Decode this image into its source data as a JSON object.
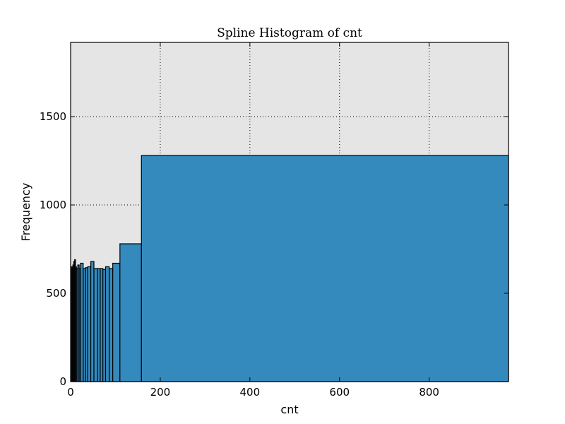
{
  "chart_data": {
    "type": "bar",
    "title": "Spline Histogram of cnt",
    "xlabel": "cnt",
    "ylabel": "Frequency",
    "xlim": [
      0,
      977
    ],
    "ylim": [
      0,
      1920
    ],
    "xticks": [
      0,
      200,
      400,
      600,
      800
    ],
    "yticks": [
      0,
      500,
      1000,
      1500
    ],
    "grid": true,
    "colors": {
      "bar": "#348abd",
      "edge": "#000000",
      "background": "#e5e5e5"
    },
    "bins": [
      {
        "x0": 1,
        "x1": 3,
        "value": 650
      },
      {
        "x0": 3,
        "x1": 5,
        "value": 640
      },
      {
        "x0": 5,
        "x1": 7,
        "value": 660
      },
      {
        "x0": 7,
        "x1": 9,
        "value": 680
      },
      {
        "x0": 9,
        "x1": 11,
        "value": 690
      },
      {
        "x0": 11,
        "x1": 13,
        "value": 650
      },
      {
        "x0": 13,
        "x1": 16,
        "value": 640
      },
      {
        "x0": 16,
        "x1": 19,
        "value": 660
      },
      {
        "x0": 19,
        "x1": 22,
        "value": 640
      },
      {
        "x0": 22,
        "x1": 28,
        "value": 670
      },
      {
        "x0": 28,
        "x1": 33,
        "value": 640
      },
      {
        "x0": 33,
        "x1": 38,
        "value": 645
      },
      {
        "x0": 38,
        "x1": 45,
        "value": 650
      },
      {
        "x0": 45,
        "x1": 52,
        "value": 680
      },
      {
        "x0": 52,
        "x1": 60,
        "value": 640
      },
      {
        "x0": 60,
        "x1": 66,
        "value": 640
      },
      {
        "x0": 66,
        "x1": 72,
        "value": 640
      },
      {
        "x0": 72,
        "x1": 78,
        "value": 635
      },
      {
        "x0": 78,
        "x1": 86,
        "value": 650
      },
      {
        "x0": 86,
        "x1": 94,
        "value": 640
      },
      {
        "x0": 94,
        "x1": 110,
        "value": 670
      },
      {
        "x0": 110,
        "x1": 158,
        "value": 780
      },
      {
        "x0": 158,
        "x1": 977,
        "value": 1280
      }
    ]
  }
}
